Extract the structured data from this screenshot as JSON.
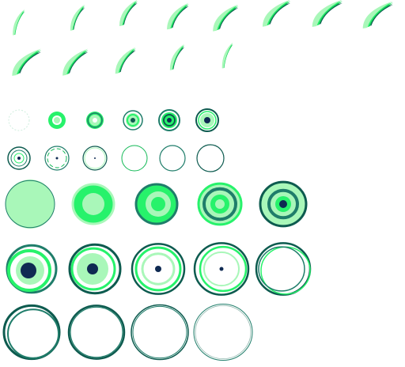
{
  "sheet": {
    "palette": {
      "bright_green": "#27f26b",
      "mid_green": "#12b956",
      "light_green": "#a9f7b9",
      "teal": "#1f7d6a",
      "dark_teal": "#0d5b4f",
      "navy": "#0f2a52",
      "background": "#ffffff"
    },
    "swoosh_frames": [
      {
        "name": "swoosh-frame-1",
        "intensity": 0.25
      },
      {
        "name": "swoosh-frame-2",
        "intensity": 0.35
      },
      {
        "name": "swoosh-frame-3",
        "intensity": 0.5
      },
      {
        "name": "swoosh-frame-4",
        "intensity": 0.65
      },
      {
        "name": "swoosh-frame-5",
        "intensity": 0.8
      },
      {
        "name": "swoosh-frame-6",
        "intensity": 0.9
      },
      {
        "name": "swoosh-frame-7",
        "intensity": 1.0
      },
      {
        "name": "swoosh-frame-8",
        "intensity": 1.0
      },
      {
        "name": "swoosh-frame-9",
        "intensity": 0.95
      },
      {
        "name": "swoosh-frame-10",
        "intensity": 0.8
      },
      {
        "name": "swoosh-frame-11",
        "intensity": 0.6
      },
      {
        "name": "swoosh-frame-12",
        "intensity": 0.35
      },
      {
        "name": "swoosh-frame-13",
        "intensity": 0.2
      }
    ],
    "small_ring_frames": [
      {
        "name": "small-ring-frame-1",
        "style": "faint"
      },
      {
        "name": "small-ring-frame-2",
        "style": "ring-green"
      },
      {
        "name": "small-ring-frame-3",
        "style": "ring-green-dot"
      },
      {
        "name": "small-ring-frame-4",
        "style": "ring-teal"
      },
      {
        "name": "small-ring-frame-5",
        "style": "ring-core"
      },
      {
        "name": "small-ring-frame-6",
        "style": "ring-core-dark"
      },
      {
        "name": "small-ring-frame-7",
        "style": "thin-core"
      },
      {
        "name": "small-ring-frame-8",
        "style": "thin-dot"
      },
      {
        "name": "small-ring-frame-9",
        "style": "thin-dot-small"
      },
      {
        "name": "small-ring-frame-10",
        "style": "outline-green"
      },
      {
        "name": "small-ring-frame-11",
        "style": "outline-teal"
      },
      {
        "name": "small-ring-frame-12",
        "style": "outline-dark"
      }
    ],
    "large_ring_frames": [
      {
        "name": "large-ring-frame-1",
        "style": "filled"
      },
      {
        "name": "large-ring-frame-2",
        "style": "green-light-core"
      },
      {
        "name": "large-ring-frame-3",
        "style": "teal-ring-light-core"
      },
      {
        "name": "large-ring-frame-4",
        "style": "teal-rings-green-core"
      },
      {
        "name": "large-ring-frame-5",
        "style": "teal-rings-navy-core"
      },
      {
        "name": "large-ring-frame-6",
        "style": "navy-big-core"
      },
      {
        "name": "large-ring-frame-7",
        "style": "navy-mid-core"
      },
      {
        "name": "large-ring-frame-8",
        "style": "navy-small-core"
      },
      {
        "name": "large-ring-frame-9",
        "style": "navy-tiny-core"
      },
      {
        "name": "large-ring-frame-10",
        "style": "outline-rings"
      },
      {
        "name": "large-ring-frame-11",
        "style": "outline-thick"
      },
      {
        "name": "large-ring-frame-12",
        "style": "outline-medium"
      },
      {
        "name": "large-ring-frame-13",
        "style": "outline-thin"
      },
      {
        "name": "large-ring-frame-14",
        "style": "outline-hairline"
      }
    ]
  }
}
